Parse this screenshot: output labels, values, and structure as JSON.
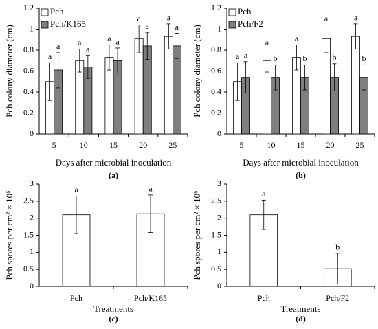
{
  "chart_data": [
    {
      "type": "bar",
      "panel_label": "(a)",
      "y_label": "Pch colony diameter (cm)",
      "x_label": "Days after microbial inoculation",
      "categories": [
        "5",
        "10",
        "15",
        "20",
        "25"
      ],
      "ylim": [
        0,
        1.2
      ],
      "yticks": [
        0,
        0.2,
        0.4,
        0.6,
        0.8,
        1,
        1.2
      ],
      "legend": "top-left",
      "series": [
        {
          "name": "Pch",
          "color": "#ffffff",
          "values": [
            0.5,
            0.7,
            0.73,
            0.91,
            0.93
          ],
          "errors": [
            0.18,
            0.11,
            0.12,
            0.13,
            0.12
          ],
          "letters": [
            "a",
            "a",
            "a",
            "a",
            "a"
          ]
        },
        {
          "name": "Pch/K165",
          "color": "#7f7f7f",
          "values": [
            0.61,
            0.64,
            0.7,
            0.84,
            0.84
          ],
          "errors": [
            0.17,
            0.11,
            0.12,
            0.13,
            0.12
          ],
          "letters": [
            "a",
            "a",
            "a",
            "a",
            "a"
          ]
        }
      ]
    },
    {
      "type": "bar",
      "panel_label": "(b)",
      "y_label": "Pch colony diameter (cm)",
      "x_label": "Days after microbial inoculation",
      "categories": [
        "5",
        "10",
        "15",
        "20",
        "25"
      ],
      "ylim": [
        0,
        1.2
      ],
      "yticks": [
        0,
        0.2,
        0.4,
        0.6,
        0.8,
        1,
        1.2
      ],
      "legend": "top-left",
      "series": [
        {
          "name": "Pch",
          "color": "#ffffff",
          "values": [
            0.5,
            0.7,
            0.73,
            0.91,
            0.93
          ],
          "errors": [
            0.18,
            0.11,
            0.12,
            0.13,
            0.12
          ],
          "letters": [
            "a",
            "a",
            "a",
            "a",
            "a"
          ]
        },
        {
          "name": "Pch/F2",
          "color": "#7f7f7f",
          "values": [
            0.54,
            0.54,
            0.54,
            0.54,
            0.54
          ],
          "errors": [
            0.15,
            0.12,
            0.12,
            0.13,
            0.12
          ],
          "letters": [
            "a",
            "b",
            "b",
            "b",
            "b"
          ]
        }
      ]
    },
    {
      "type": "bar",
      "panel_label": "(c)",
      "y_label": "Pch spores per cm² × 10⁶",
      "x_label": "Treatments",
      "categories": [
        "Pch",
        "Pch/K165"
      ],
      "ylim": [
        0,
        3
      ],
      "yticks": [
        0,
        0.5,
        1,
        1.5,
        2,
        2.5,
        3
      ],
      "series": [
        {
          "color": "#ffffff",
          "values": [
            2.1,
            2.13
          ],
          "errors": [
            0.55,
            0.55
          ],
          "letters": [
            "a",
            "a"
          ]
        }
      ]
    },
    {
      "type": "bar",
      "panel_label": "(d)",
      "y_label": "Pch spores per cm² × 10⁶",
      "x_label": "Treatments",
      "categories": [
        "Pch",
        "Pch/F2"
      ],
      "ylim": [
        0,
        3
      ],
      "yticks": [
        0,
        0.5,
        1,
        1.5,
        2,
        2.5,
        3
      ],
      "series": [
        {
          "color": "#ffffff",
          "values": [
            2.1,
            0.52
          ],
          "errors": [
            0.43,
            0.45
          ],
          "letters": [
            "a",
            "b"
          ]
        }
      ]
    }
  ]
}
